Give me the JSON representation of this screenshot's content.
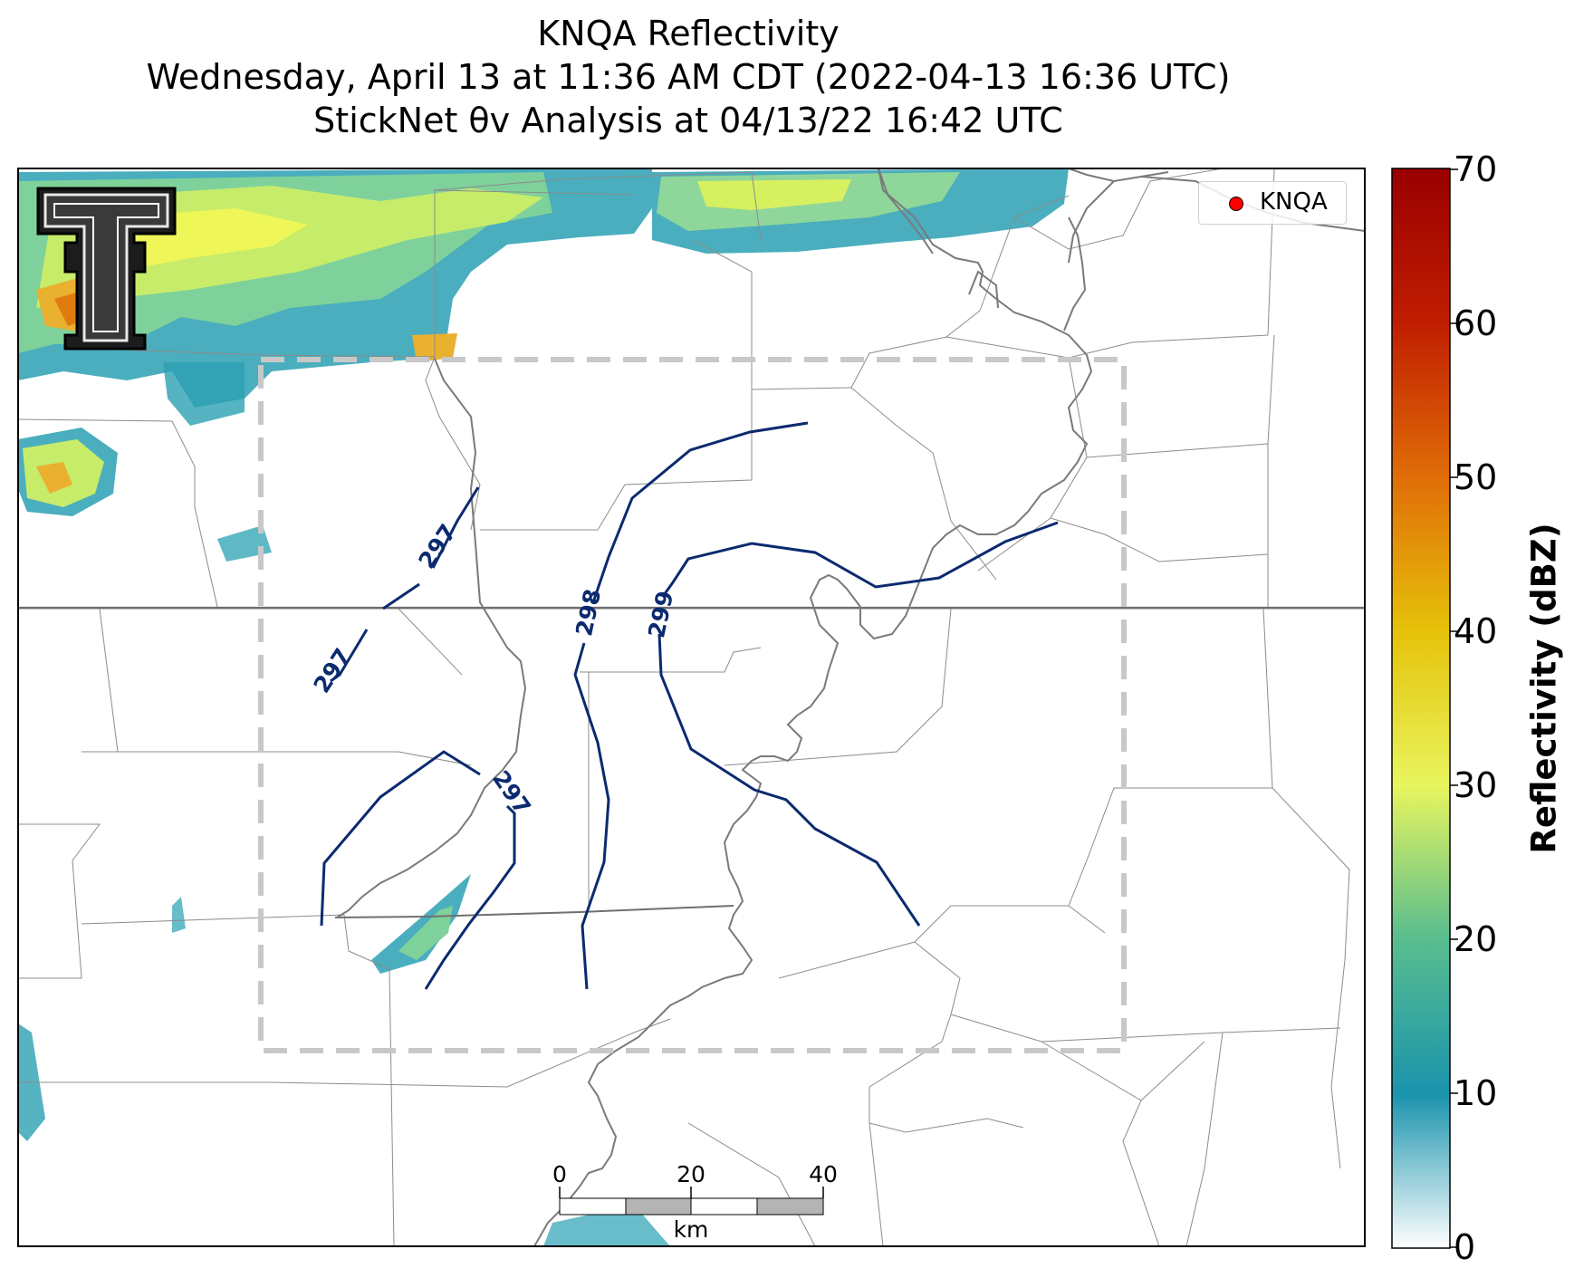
{
  "title": {
    "line1": "KNQA Reflectivity",
    "line2": "Wednesday, April 13 at 11:36 AM CDT (2022-04-13 16:36 UTC)",
    "line3": "StickNet θv Analysis at 04/13/22 16:42 UTC"
  },
  "legend": {
    "label": "KNQA",
    "marker_color": "#ff0000"
  },
  "colorbar": {
    "label": "Reflectivity (dBZ)",
    "min": 0,
    "max": 70,
    "ticks": [
      "0",
      "10",
      "20",
      "30",
      "40",
      "50",
      "60",
      "70"
    ],
    "colors": [
      "#ffffff",
      "#1a93ad",
      "#58bd8f",
      "#e8f55e",
      "#e6c20a",
      "#e06d08",
      "#c01d00",
      "#9a0000"
    ]
  },
  "contours": {
    "variable": "θv",
    "color": "#0b2a6f",
    "labels": [
      "297",
      "297",
      "297",
      "298",
      "299"
    ]
  },
  "scalebar": {
    "ticks": [
      "0",
      "20",
      "40"
    ],
    "unit": "km"
  },
  "analysis_domain": {
    "style": "dashed",
    "color": "#c8c8c8"
  },
  "logo": {
    "name": "texas-tech-double-t-logo"
  }
}
